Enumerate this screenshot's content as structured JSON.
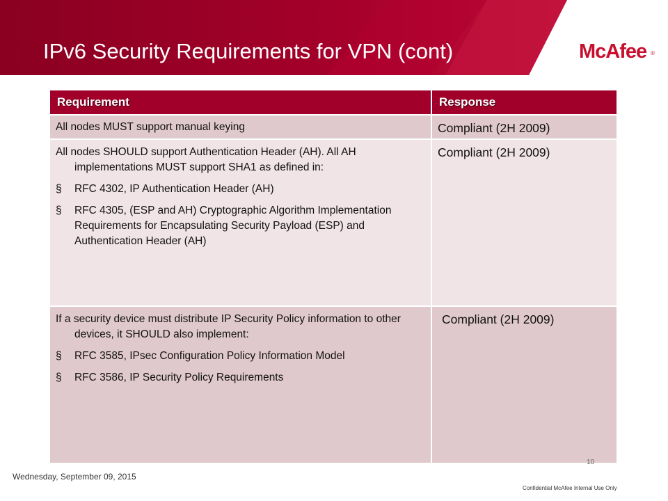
{
  "slide": {
    "title": "IPv6 Security Requirements for VPN (cont)",
    "logo": "McAfee",
    "logo_mark": "®",
    "colors": {
      "banner_dark": "#8a0021",
      "banner_mid": "#b0002e",
      "accent": "#c8102e",
      "header_row": "#a1002a"
    }
  },
  "table": {
    "headers": {
      "requirement": "Requirement",
      "response": "Response"
    },
    "rows": [
      {
        "requirement": "All nodes MUST support manual keying",
        "response": "Compliant (2H 2009)"
      },
      {
        "requirement": "All nodes SHOULD support Authentication Header (AH). All AH implementations MUST support SHA1 as defined in:",
        "bullets": [
          "RFC 4302, IP Authentication Header (AH)",
          "RFC 4305, (ESP and AH) Cryptographic Algorithm Implementation Requirements for Encapsulating Security Payload (ESP) and Authentication Header (AH)"
        ],
        "response": "Compliant (2H 2009)"
      },
      {
        "requirement": "If a security device must distribute IP Security Policy information to other devices, it SHOULD also implement:",
        "bullets": [
          "RFC 3585, IPsec Configuration Policy Information Model",
          "RFC 3586, IP Security Policy Requirements"
        ],
        "response": "Compliant (2H 2009)"
      }
    ],
    "bullet_mark": "§"
  },
  "footer": {
    "date": "Wednesday, September 09, 2015",
    "page_number": "10",
    "confidential": "Confidential McAfee Internal Use Only"
  }
}
